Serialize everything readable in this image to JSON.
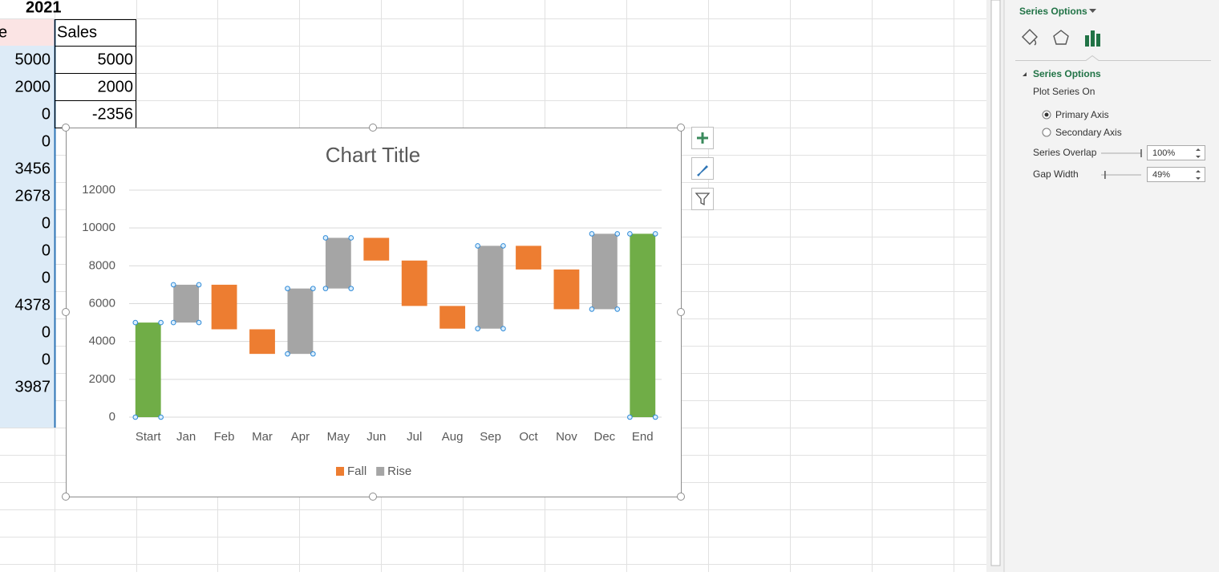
{
  "spreadsheet": {
    "year": "2021",
    "column_headers": [
      "e",
      "Sales"
    ],
    "rows": [
      [
        5000,
        5000
      ],
      [
        2000,
        2000
      ],
      [
        0,
        -2356
      ],
      [
        0
      ],
      [
        3456
      ],
      [
        2678
      ],
      [
        0
      ],
      [
        0
      ],
      [
        0
      ],
      [
        4378
      ],
      [
        0
      ],
      [
        0
      ],
      [
        3987
      ]
    ]
  },
  "chart_data": {
    "type": "waterfall",
    "title": "Chart Title",
    "categories": [
      "Start",
      "Jan",
      "Feb",
      "Mar",
      "Apr",
      "May",
      "Jun",
      "Jul",
      "Aug",
      "Sep",
      "Oct",
      "Nov",
      "Dec",
      "End"
    ],
    "base": [
      0,
      5000,
      4644,
      3344,
      3344,
      6800,
      8278,
      5878,
      4678,
      4678,
      7806,
      5706,
      5706,
      0
    ],
    "series": [
      {
        "name": "Fall",
        "color": "#ed7d31",
        "values": [
          0,
          0,
          2356,
          1300,
          0,
          0,
          1200,
          2400,
          1200,
          0,
          1250,
          2100,
          0,
          0
        ]
      },
      {
        "name": "Rise",
        "color": "#a5a5a5",
        "values": [
          5000,
          2000,
          0,
          0,
          3456,
          2678,
          0,
          0,
          0,
          4378,
          0,
          0,
          3987,
          9693
        ],
        "point_colors": [
          "#70ad47",
          "#a5a5a5",
          "#a5a5a5",
          "#a5a5a5",
          "#a5a5a5",
          "#a5a5a5",
          "#a5a5a5",
          "#a5a5a5",
          "#a5a5a5",
          "#a5a5a5",
          "#a5a5a5",
          "#a5a5a5",
          "#a5a5a5",
          "#70ad47"
        ]
      }
    ],
    "ylim": [
      0,
      12000
    ],
    "yticks": [
      0,
      2000,
      4000,
      6000,
      8000,
      10000,
      12000
    ],
    "grid": true,
    "legend": "bottom"
  },
  "format_panel": {
    "menu": "Series Options",
    "section": "Series Options",
    "plot_series_on": "Plot Series On",
    "axis_options": [
      "Primary Axis",
      "Secondary Axis"
    ],
    "selected_axis": 0,
    "series_overlap": {
      "label": "Series Overlap",
      "value": {
        "value": 100,
        "label": "100%"
      }
    },
    "gap_width": {
      "label": "Gap Width",
      "value": {
        "value": 49,
        "label": "49%"
      }
    }
  }
}
